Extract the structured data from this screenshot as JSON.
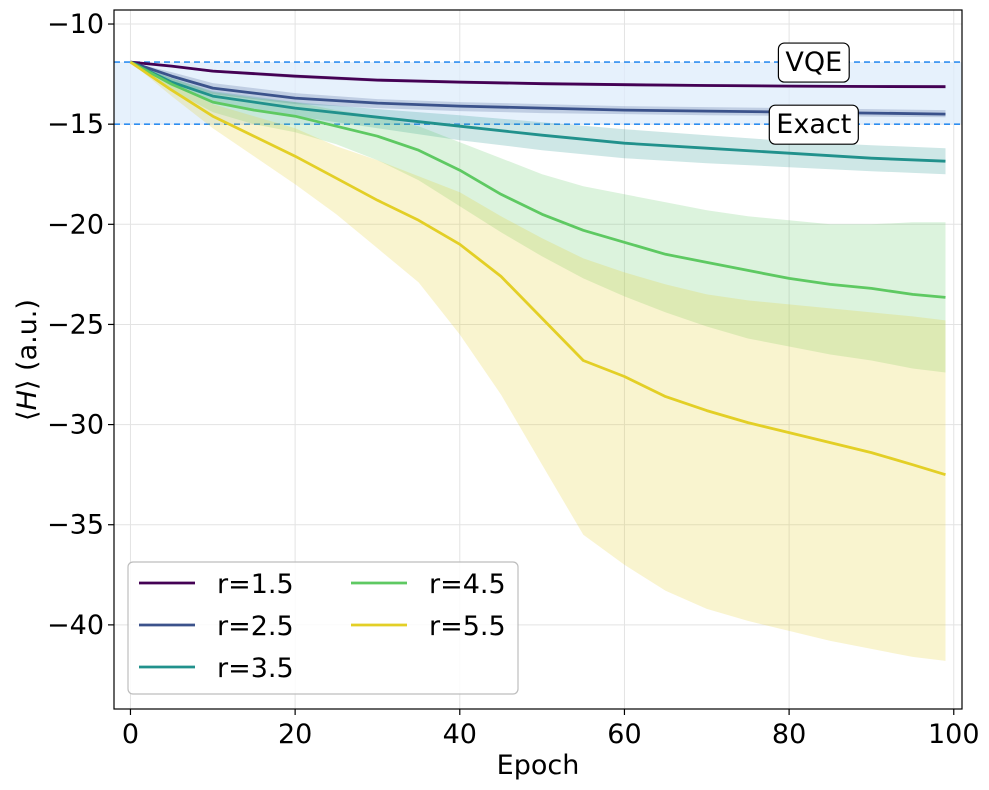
{
  "chart_data": {
    "type": "line",
    "title": "",
    "xlabel": "Epoch",
    "ylabel_prefix": "⟨",
    "ylabel_var": "H",
    "ylabel_suffix": "⟩ (a.u.)",
    "xlim": [
      -2,
      101
    ],
    "ylim": [
      -44.2,
      -9.3
    ],
    "x_ticks": [
      0,
      20,
      40,
      60,
      80,
      100
    ],
    "y_ticks": [
      -10,
      -15,
      -20,
      -25,
      -30,
      -35,
      -40
    ],
    "y_tick_labels": [
      "−10",
      "−15",
      "−20",
      "−25",
      "−30",
      "−35",
      "−40"
    ],
    "grid": true,
    "legend_position": "lower-left",
    "reference_band": {
      "upper": -11.9,
      "lower": -15.0,
      "color": "#deecfb",
      "line_color": "#2f8ef0",
      "upper_label": "VQE",
      "lower_label": "Exact",
      "label_x": 83
    },
    "series": [
      {
        "name": "r=1.5",
        "color": "#440154",
        "x": [
          0,
          5,
          10,
          20,
          30,
          40,
          50,
          60,
          70,
          80,
          90,
          99
        ],
        "values": [
          -11.9,
          -12.1,
          -12.35,
          -12.6,
          -12.8,
          -12.9,
          -12.98,
          -13.03,
          -13.07,
          -13.1,
          -13.12,
          -13.13
        ],
        "lower": [
          -11.9,
          -12.15,
          -12.42,
          -12.7,
          -12.88,
          -12.98,
          -13.05,
          -13.1,
          -13.14,
          -13.17,
          -13.19,
          -13.2
        ],
        "upper": [
          -11.9,
          -12.05,
          -12.28,
          -12.52,
          -12.72,
          -12.82,
          -12.9,
          -12.96,
          -13.0,
          -13.03,
          -13.05,
          -13.06
        ]
      },
      {
        "name": "r=2.5",
        "color": "#3b528b",
        "x": [
          0,
          5,
          10,
          20,
          30,
          40,
          50,
          60,
          70,
          80,
          90,
          99
        ],
        "values": [
          -11.9,
          -12.6,
          -13.2,
          -13.7,
          -13.95,
          -14.1,
          -14.2,
          -14.3,
          -14.35,
          -14.4,
          -14.45,
          -14.5
        ],
        "lower": [
          -11.9,
          -12.9,
          -13.5,
          -14.0,
          -14.2,
          -14.35,
          -14.45,
          -14.5,
          -14.55,
          -14.58,
          -14.62,
          -14.65
        ],
        "upper": [
          -11.9,
          -12.4,
          -12.95,
          -13.45,
          -13.75,
          -13.9,
          -14.0,
          -14.1,
          -14.15,
          -14.2,
          -14.25,
          -14.3
        ]
      },
      {
        "name": "r=3.5",
        "color": "#21918c",
        "x": [
          0,
          5,
          10,
          20,
          30,
          40,
          50,
          60,
          70,
          80,
          90,
          99
        ],
        "values": [
          -11.9,
          -12.9,
          -13.6,
          -14.2,
          -14.65,
          -15.1,
          -15.55,
          -15.95,
          -16.2,
          -16.45,
          -16.7,
          -16.85
        ],
        "lower": [
          -11.9,
          -13.1,
          -13.85,
          -14.6,
          -15.2,
          -15.8,
          -16.3,
          -16.7,
          -16.95,
          -17.15,
          -17.35,
          -17.5
        ],
        "upper": [
          -11.9,
          -12.7,
          -13.35,
          -13.9,
          -14.25,
          -14.55,
          -14.9,
          -15.25,
          -15.55,
          -15.85,
          -16.05,
          -16.2
        ]
      },
      {
        "name": "r=4.5",
        "color": "#5ec962",
        "x": [
          0,
          5,
          10,
          15,
          20,
          25,
          30,
          35,
          40,
          45,
          50,
          55,
          60,
          65,
          70,
          75,
          80,
          85,
          90,
          95,
          99
        ],
        "values": [
          -11.9,
          -13.0,
          -13.9,
          -14.3,
          -14.6,
          -15.1,
          -15.6,
          -16.3,
          -17.3,
          -18.5,
          -19.5,
          -20.3,
          -20.9,
          -21.5,
          -21.9,
          -22.3,
          -22.7,
          -23.0,
          -23.2,
          -23.5,
          -23.65
        ],
        "lower": [
          -11.9,
          -13.3,
          -14.4,
          -15.0,
          -15.4,
          -16.0,
          -16.8,
          -17.8,
          -19.1,
          -20.4,
          -21.6,
          -22.7,
          -23.6,
          -24.4,
          -25.1,
          -25.7,
          -26.1,
          -26.5,
          -26.8,
          -27.2,
          -27.4
        ],
        "upper": [
          -11.9,
          -12.7,
          -13.4,
          -13.7,
          -13.9,
          -14.3,
          -14.6,
          -15.1,
          -15.9,
          -16.7,
          -17.5,
          -18.1,
          -18.5,
          -18.9,
          -19.3,
          -19.6,
          -19.8,
          -20.0,
          -20.0,
          -19.9,
          -19.9
        ]
      },
      {
        "name": "r=5.5",
        "color": "#e3cf26",
        "x": [
          0,
          5,
          10,
          15,
          20,
          25,
          30,
          35,
          40,
          45,
          50,
          55,
          60,
          65,
          70,
          75,
          80,
          85,
          90,
          95,
          99
        ],
        "values": [
          -11.9,
          -13.3,
          -14.6,
          -15.6,
          -16.6,
          -17.7,
          -18.8,
          -19.8,
          -21.0,
          -22.6,
          -24.7,
          -26.8,
          -27.6,
          -28.6,
          -29.3,
          -29.9,
          -30.4,
          -30.9,
          -31.4,
          -32.0,
          -32.5
        ],
        "lower": [
          -11.9,
          -13.6,
          -15.2,
          -16.6,
          -18.0,
          -19.5,
          -21.2,
          -22.9,
          -25.5,
          -28.5,
          -32.0,
          -35.5,
          -37.0,
          -38.3,
          -39.2,
          -39.8,
          -40.3,
          -40.8,
          -41.2,
          -41.6,
          -41.8
        ],
        "upper": [
          -11.9,
          -13.0,
          -14.0,
          -14.6,
          -15.2,
          -16.1,
          -16.8,
          -17.6,
          -18.4,
          -19.6,
          -20.7,
          -21.7,
          -22.4,
          -23.0,
          -23.5,
          -23.8,
          -24.0,
          -24.2,
          -24.4,
          -24.6,
          -24.8
        ]
      }
    ]
  }
}
